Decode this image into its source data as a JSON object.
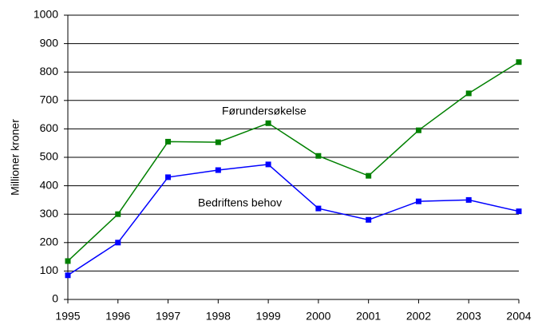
{
  "chart_data": {
    "type": "line",
    "y_label": "Millioner kroner",
    "x": [
      1995,
      1996,
      1997,
      1998,
      1999,
      2000,
      2001,
      2002,
      2003,
      2004
    ],
    "xlim": [
      1995,
      2004
    ],
    "xticks": [
      1995,
      1996,
      1997,
      1998,
      1999,
      2000,
      2001,
      2002,
      2003,
      2004
    ],
    "ylim": [
      0,
      1000
    ],
    "yticks": [
      0,
      100,
      200,
      300,
      400,
      500,
      600,
      700,
      800,
      900,
      1000
    ],
    "grid": true,
    "series": [
      {
        "name": "Førundersøkelse",
        "color": "#008000",
        "values": [
          135,
          300,
          555,
          553,
          620,
          505,
          435,
          595,
          725,
          835
        ]
      },
      {
        "name": "Bedriftens behov",
        "color": "#0000ff",
        "values": [
          85,
          200,
          430,
          455,
          475,
          320,
          280,
          345,
          350,
          310
        ]
      }
    ]
  }
}
